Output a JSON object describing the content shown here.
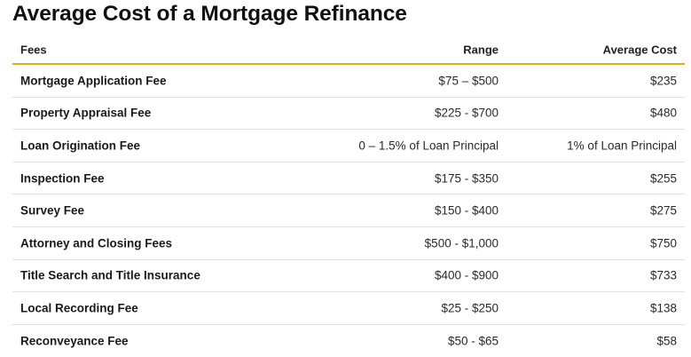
{
  "title": "Average Cost of a Mortgage Refinance",
  "table": {
    "headers": {
      "fees": "Fees",
      "range": "Range",
      "average_cost": "Average Cost"
    },
    "rows": [
      {
        "fee": "Mortgage Application Fee",
        "range": "$75 – $500",
        "average_cost": "$235"
      },
      {
        "fee": "Property Appraisal Fee",
        "range": "$225 - $700",
        "average_cost": "$480"
      },
      {
        "fee": "Loan Origination Fee",
        "range": "0 – 1.5% of Loan Principal",
        "average_cost": "1% of Loan Principal"
      },
      {
        "fee": "Inspection Fee",
        "range": "$175 - $350",
        "average_cost": "$255"
      },
      {
        "fee": "Survey Fee",
        "range": "$150 - $400",
        "average_cost": "$275"
      },
      {
        "fee": "Attorney and Closing Fees",
        "range": "$500 - $1,000",
        "average_cost": "$750"
      },
      {
        "fee": "Title Search and Title Insurance",
        "range": "$400 - $900",
        "average_cost": "$733"
      },
      {
        "fee": "Local Recording Fee",
        "range": "$25 - $250",
        "average_cost": "$138"
      },
      {
        "fee": "Reconveyance Fee",
        "range": "$50 - $65",
        "average_cost": "$58"
      }
    ]
  },
  "colors": {
    "header_rule": "#e8a917",
    "row_divider": "#e2e2e2"
  }
}
